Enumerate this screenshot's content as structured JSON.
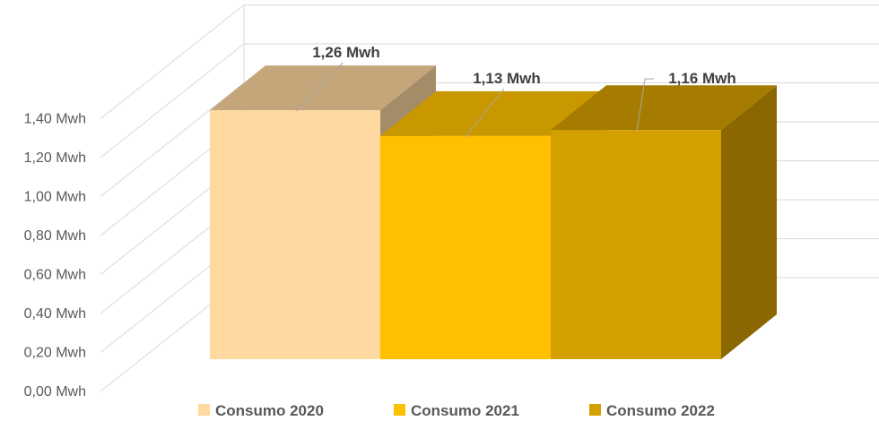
{
  "chart_data": {
    "type": "bar",
    "title": "",
    "xlabel": "",
    "ylabel": "",
    "ylim": [
      0,
      1.4
    ],
    "y_tick_labels": [
      "0,00 Mwh",
      "0,20 Mwh",
      "0,40 Mwh",
      "0,60 Mwh",
      "0,80 Mwh",
      "1,00 Mwh",
      "1,20 Mwh",
      "1,40 Mwh"
    ],
    "y_ticks": [
      0,
      0.2,
      0.4,
      0.6,
      0.8,
      1.0,
      1.2,
      1.4
    ],
    "grid": true,
    "style": "3d",
    "legend_position": "bottom",
    "series": [
      {
        "name": "Consumo 2020",
        "value": 1.26,
        "label": "1,26 Mwh",
        "color": "#FFD9A0",
        "top_color": "#C5A67A",
        "side_color": "#A58C69"
      },
      {
        "name": "Consumo 2021",
        "value": 1.13,
        "label": "1,13 Mwh",
        "color": "#FFC000",
        "top_color": "#C99700",
        "side_color": "#A88000"
      },
      {
        "name": "Consumo 2022",
        "value": 1.16,
        "label": "1,16 Mwh",
        "color": "#D4A000",
        "top_color": "#A67C00",
        "side_color": "#8A6700"
      }
    ]
  }
}
